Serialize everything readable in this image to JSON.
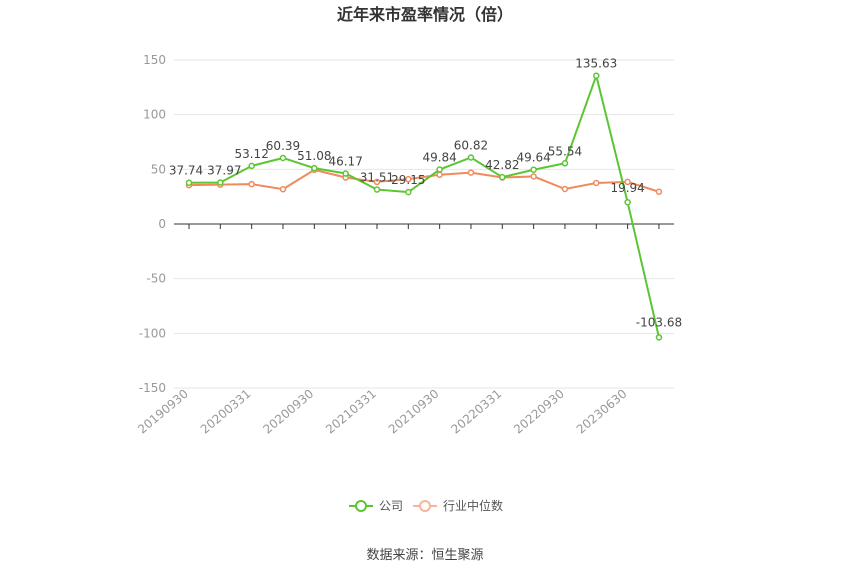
{
  "chart_data": {
    "type": "line",
    "title": "近年来市盈率情况（倍）",
    "xlabel": "",
    "ylabel": "",
    "ylim": [
      -150,
      150
    ],
    "yticks": [
      150,
      100,
      50,
      0,
      -50,
      -100,
      -150
    ],
    "grid": true,
    "legend": "bottom-center",
    "x": [
      "20190930",
      "20191231",
      "20200331",
      "20200630",
      "20200930",
      "20201231",
      "20210331",
      "20210630",
      "20210930",
      "20211231",
      "20220331",
      "20220630",
      "20220930",
      "20221231",
      "20230630",
      "20230930"
    ],
    "x_tick_labels": [
      "20190930",
      "20200331",
      "20200930",
      "20210331",
      "20210930",
      "20220331",
      "20220930",
      "20230630"
    ],
    "x_tick_index": [
      0,
      2,
      4,
      6,
      8,
      10,
      12,
      14
    ],
    "series": [
      {
        "name": "公司",
        "color": "#5cc632",
        "values": [
          37.74,
          37.97,
          53.12,
          60.39,
          51.08,
          46.17,
          31.51,
          29.15,
          49.84,
          60.82,
          42.82,
          49.64,
          55.54,
          135.63,
          19.94,
          -103.68
        ],
        "labels": [
          "37.74",
          "37.97",
          "53.12",
          "60.39",
          "51.08",
          "46.17",
          "31.51",
          "29.15",
          "49.84",
          "60.82",
          "42.82",
          "49.64",
          "55.54",
          "135.63",
          "19.94",
          "-103.68"
        ]
      },
      {
        "name": "行业中位数",
        "color": "#f08a5d",
        "values": [
          35.5,
          36.0,
          36.5,
          31.8,
          49.5,
          42.5,
          38.5,
          41.0,
          45.0,
          47.0,
          42.5,
          43.5,
          32.0,
          37.5,
          38.5,
          29.5
        ]
      }
    ]
  },
  "source_text": "数据来源：恒生聚源"
}
